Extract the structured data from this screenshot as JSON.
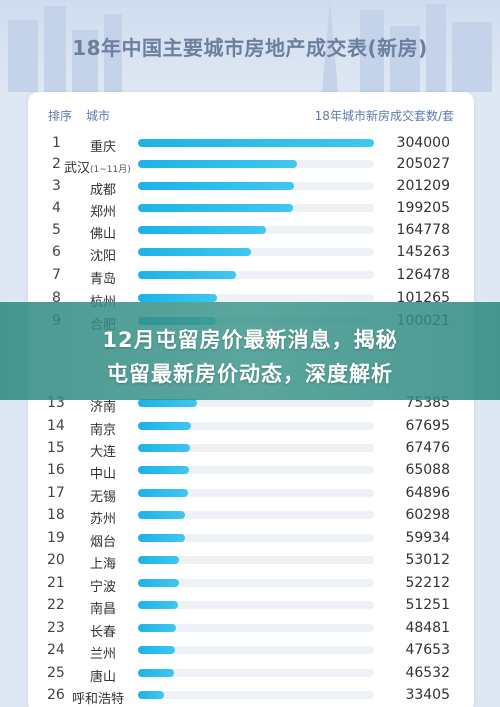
{
  "page": {
    "title": "18年中国主要城市房地产成交表(新房)",
    "header": {
      "rank_label": "排序",
      "city_label": "城市",
      "value_label": "18年城市新房成交套数/套"
    },
    "banner": {
      "line1": "12月屯留房价最新消息，揭秘",
      "line2": "屯留最新房价动态，深度解析"
    }
  },
  "colors": {
    "bar": "#1db3e7",
    "banner": "#2c8880",
    "title": "#6c7f9c"
  },
  "chart_data": {
    "type": "bar",
    "orientation": "horizontal",
    "title": "18年中国主要城市房地产成交表(新房)",
    "xlabel": "18年城市新房成交套数/套",
    "xlim": [
      0,
      304000
    ],
    "rows": [
      {
        "rank": "1",
        "city": "重庆",
        "note": "",
        "value": 304000,
        "label": "304000"
      },
      {
        "rank": "2",
        "city": "武汉",
        "note": "(1~11月)",
        "value": 205027,
        "label": "205027"
      },
      {
        "rank": "3",
        "city": "成都",
        "note": "",
        "value": 201209,
        "label": "201209"
      },
      {
        "rank": "4",
        "city": "郑州",
        "note": "",
        "value": 199205,
        "label": "199205"
      },
      {
        "rank": "5",
        "city": "佛山",
        "note": "",
        "value": 164778,
        "label": "164778"
      },
      {
        "rank": "6",
        "city": "沈阳",
        "note": "",
        "value": 145263,
        "label": "145263"
      },
      {
        "rank": "7",
        "city": "青岛",
        "note": "",
        "value": 126478,
        "label": "126478"
      },
      {
        "rank": "8",
        "city": "杭州",
        "note": "",
        "value": 101265,
        "label": "101265"
      },
      {
        "rank": "9",
        "city": "合肥",
        "note": "",
        "value": 100021,
        "label": "100021"
      },
      {
        "rank": "13",
        "city": "济南",
        "note": "",
        "value": 75385,
        "label": "75385"
      },
      {
        "rank": "14",
        "city": "南京",
        "note": "",
        "value": 67695,
        "label": "67695"
      },
      {
        "rank": "15",
        "city": "大连",
        "note": "",
        "value": 67476,
        "label": "67476"
      },
      {
        "rank": "16",
        "city": "中山",
        "note": "",
        "value": 65088,
        "label": "65088"
      },
      {
        "rank": "17",
        "city": "无锡",
        "note": "",
        "value": 64896,
        "label": "64896"
      },
      {
        "rank": "18",
        "city": "苏州",
        "note": "",
        "value": 60298,
        "label": "60298"
      },
      {
        "rank": "19",
        "city": "烟台",
        "note": "",
        "value": 59934,
        "label": "59934"
      },
      {
        "rank": "20",
        "city": "上海",
        "note": "",
        "value": 53012,
        "label": "53012"
      },
      {
        "rank": "21",
        "city": "宁波",
        "note": "",
        "value": 52212,
        "label": "52212"
      },
      {
        "rank": "22",
        "city": "南昌",
        "note": "",
        "value": 51251,
        "label": "51251"
      },
      {
        "rank": "23",
        "city": "长春",
        "note": "",
        "value": 48481,
        "label": "48481"
      },
      {
        "rank": "24",
        "city": "兰州",
        "note": "",
        "value": 47653,
        "label": "47653"
      },
      {
        "rank": "25",
        "city": "唐山",
        "note": "",
        "value": 46532,
        "label": "46532"
      },
      {
        "rank": "26",
        "city": "呼和浩特",
        "note": "",
        "value": 33405,
        "label": "33405"
      }
    ]
  }
}
